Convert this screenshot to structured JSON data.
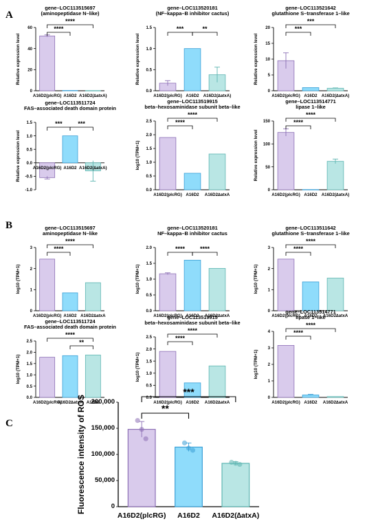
{
  "panel_labels": [
    "A",
    "B",
    "C"
  ],
  "colors": {
    "purple_fill": "#d9cbec",
    "purple_edge": "#8c6fb5",
    "blue_fill": "#8fdcfb",
    "blue_edge": "#3a9fd6",
    "teal_fill": "#b9e6e4",
    "teal_edge": "#5db5b1"
  },
  "chart_data": [
    {
      "panel": "A",
      "type": "bar",
      "title": [
        "gene–LOC113515697",
        "(aminopeptidase N–like)"
      ],
      "ylabel": "Relative expression level",
      "ylim": [
        0,
        60
      ],
      "yticks": [
        0,
        20,
        40,
        60
      ],
      "tick_labels": [
        "0",
        "20",
        "40",
        "60"
      ],
      "categories": [
        "A16D2(plcRG)",
        "A16D2",
        "A16D2(∆atxA)"
      ],
      "values": [
        52,
        0.3,
        0.2
      ],
      "err": [
        1,
        0,
        0
      ],
      "colors": [
        "purple",
        "blue",
        "teal"
      ],
      "sig": [
        {
          "from": 0,
          "to": 1,
          "label": "****",
          "level": 0
        },
        {
          "from": 0,
          "to": 2,
          "label": "****",
          "level": 1
        }
      ]
    },
    {
      "panel": "A",
      "type": "bar",
      "title": [
        "gene–LOC113520181",
        "(NF–kappa–B inhibitor cactus)"
      ],
      "ylabel": "Relative expression level",
      "ylim": [
        0,
        1.5
      ],
      "yticks": [
        0,
        0.5,
        1.0,
        1.5
      ],
      "tick_labels": [
        "0.0",
        "0.5",
        "1.0",
        "1.5"
      ],
      "categories": [
        "A16D2(plcRG)",
        "A16D2",
        "A16D2(∆atxA)"
      ],
      "values": [
        0.18,
        1.0,
        0.38
      ],
      "err": [
        0.06,
        0,
        0.18
      ],
      "colors": [
        "purple",
        "blue",
        "teal"
      ],
      "sig": [
        {
          "from": 0,
          "to": 1,
          "label": "***",
          "level": 0
        },
        {
          "from": 1,
          "to": 2,
          "label": "**",
          "level": 0
        }
      ]
    },
    {
      "panel": "A",
      "type": "bar",
      "title": [
        "gene–LOC113521642",
        "glutathione S–transferase 1–like"
      ],
      "ylabel": "Relative expression level",
      "ylim": [
        0,
        20
      ],
      "yticks": [
        0,
        5,
        10,
        15,
        20
      ],
      "tick_labels": [
        "0",
        "5",
        "10",
        "15",
        "20"
      ],
      "categories": [
        "A16D2(plcRG)",
        "A16D2",
        "A16D2(∆atxA)"
      ],
      "values": [
        9.5,
        1.0,
        0.8
      ],
      "err": [
        2.5,
        0,
        0.1
      ],
      "colors": [
        "purple",
        "blue",
        "teal"
      ],
      "sig": [
        {
          "from": 0,
          "to": 1,
          "label": "***",
          "level": 0
        },
        {
          "from": 0,
          "to": 2,
          "label": "***",
          "level": 1
        }
      ]
    },
    {
      "panel": "A",
      "type": "bar",
      "title": [
        "gene–LOC113511724",
        "FAS–associated death domain protein"
      ],
      "ylabel": "Relative expression level",
      "ylim": [
        -1.0,
        1.5
      ],
      "yticks": [
        -1.0,
        -0.5,
        0,
        0.5,
        1.0,
        1.5
      ],
      "tick_labels": [
        "-1.0",
        "-0.5",
        "0.0",
        "0.5",
        "1.0",
        "1.5"
      ],
      "categories": [
        "A16D2(plcRG)",
        "A16D2",
        "A16D2(∆atxA)"
      ],
      "values": [
        -0.55,
        1.0,
        -0.3
      ],
      "err": [
        0.05,
        0,
        0.38
      ],
      "colors": [
        "purple",
        "blue",
        "teal"
      ],
      "sig": [
        {
          "from": 0,
          "to": 1,
          "label": "***",
          "level": 0
        },
        {
          "from": 1,
          "to": 2,
          "label": "***",
          "level": 0
        }
      ]
    },
    {
      "panel": "A",
      "type": "bar",
      "title": [
        "gene–LOC113519915",
        "beta–hexosaminidase subunit beta–like"
      ],
      "ylabel": "log10 (TPM+1)",
      "ylim": [
        0,
        2.5
      ],
      "yticks": [
        0,
        0.5,
        1.0,
        1.5,
        2.0,
        2.5
      ],
      "tick_labels": [
        "0.0",
        "0.5",
        "1.0",
        "1.5",
        "2.0",
        "2.5"
      ],
      "categories": [
        "A16D2(plcRG)",
        "A16D2",
        "A16D2∆atxA"
      ],
      "values": [
        1.9,
        0.6,
        1.3
      ],
      "err": [
        0,
        0,
        0
      ],
      "colors": [
        "purple",
        "blue",
        "teal"
      ],
      "sig": [
        {
          "from": 0,
          "to": 1,
          "label": "****",
          "level": 0
        },
        {
          "from": 0,
          "to": 2,
          "label": "****",
          "level": 1
        }
      ]
    },
    {
      "panel": "A",
      "type": "bar",
      "title": [
        "gene–LOC113514771",
        "lipase 1–like"
      ],
      "ylabel": "Relative expression level",
      "ylim": [
        0,
        150
      ],
      "yticks": [
        0,
        50,
        100,
        150
      ],
      "tick_labels": [
        "0",
        "50",
        "100",
        "150"
      ],
      "categories": [
        "A16D2(plcRG)",
        "A16D2",
        "A16D2(∆atxA)"
      ],
      "values": [
        125,
        0.5,
        62
      ],
      "err": [
        8,
        0,
        5
      ],
      "colors": [
        "purple",
        "blue",
        "teal"
      ],
      "sig": [
        {
          "from": 0,
          "to": 1,
          "label": "****",
          "level": 0
        },
        {
          "from": 0,
          "to": 2,
          "label": "****",
          "level": 1
        }
      ]
    },
    {
      "panel": "B",
      "type": "bar",
      "title": [
        "gene–LOC113515697",
        "aminopeptidase N–like"
      ],
      "ylabel": "log10 (TPM+1)",
      "ylim": [
        0,
        3
      ],
      "yticks": [
        0,
        1,
        2,
        3
      ],
      "tick_labels": [
        "0",
        "1",
        "2",
        "3"
      ],
      "categories": [
        "A16D2(plcRG)",
        "A16D2",
        "A16D2∆atxA"
      ],
      "values": [
        2.45,
        0.85,
        1.33
      ],
      "err": [
        0,
        0,
        0
      ],
      "colors": [
        "purple",
        "blue",
        "teal"
      ],
      "sig": [
        {
          "from": 0,
          "to": 1,
          "label": "****",
          "level": 0
        },
        {
          "from": 0,
          "to": 2,
          "label": "****",
          "level": 1
        }
      ]
    },
    {
      "panel": "B",
      "type": "bar",
      "title": [
        "gene–LOC113520181",
        "NF–kappa–B inhibitor cactus"
      ],
      "ylabel": "log10 (TPM+1)",
      "ylim": [
        0,
        2.0
      ],
      "yticks": [
        0,
        0.5,
        1.0,
        1.5,
        2.0
      ],
      "tick_labels": [
        "0.0",
        "0.5",
        "1.0",
        "1.5",
        "2.0"
      ],
      "categories": [
        "A16D2(plcRG)",
        "A16D2",
        "A16D2∆atxA"
      ],
      "values": [
        1.17,
        1.6,
        1.34
      ],
      "err": [
        0.03,
        0,
        0
      ],
      "colors": [
        "purple",
        "blue",
        "teal"
      ],
      "sig": [
        {
          "from": 0,
          "to": 1,
          "label": "****",
          "level": 0
        },
        {
          "from": 1,
          "to": 2,
          "label": "****",
          "level": 0
        }
      ]
    },
    {
      "panel": "B",
      "type": "bar",
      "title": [
        "gene–LOC113511642",
        "glutathione S–transferase 1–like"
      ],
      "ylabel": "log10 (TPM+1)",
      "ylim": [
        0,
        3
      ],
      "yticks": [
        0,
        1,
        2,
        3
      ],
      "tick_labels": [
        "0",
        "1",
        "2",
        "3"
      ],
      "categories": [
        "A16D2(plcRG)",
        "A16D2",
        "A16D2∆atxA"
      ],
      "values": [
        2.45,
        1.37,
        1.55
      ],
      "err": [
        0,
        0,
        0
      ],
      "colors": [
        "purple",
        "blue",
        "teal"
      ],
      "sig": [
        {
          "from": 0,
          "to": 1,
          "label": "****",
          "level": 0
        },
        {
          "from": 0,
          "to": 2,
          "label": "****",
          "level": 1
        }
      ]
    },
    {
      "panel": "B",
      "type": "bar",
      "title": [
        "gene–LOC113511724",
        "FAS–associated death domain protein"
      ],
      "ylabel": "log10 (TPM+1)",
      "ylim": [
        0,
        2.5
      ],
      "yticks": [
        0,
        0.5,
        1.0,
        1.5,
        2.0,
        2.5
      ],
      "tick_labels": [
        "0.0",
        "0.5",
        "1.0",
        "1.5",
        "2.0",
        "2.5"
      ],
      "categories": [
        "A16D2(plcRG)",
        "A16D2∆atxA",
        "A16D2"
      ],
      "values": [
        1.78,
        1.85,
        1.88
      ],
      "err": [
        0,
        0,
        0
      ],
      "colors": [
        "purple",
        "blue",
        "teal"
      ],
      "sig": [
        {
          "from": 1,
          "to": 2,
          "label": "**",
          "level": 0
        },
        {
          "from": 0,
          "to": 2,
          "label": "****",
          "level": 1
        }
      ]
    },
    {
      "panel": "B",
      "type": "bar",
      "title": [
        "gene–LOC113519915",
        "beta–hexosaminidase subunit beta–like"
      ],
      "ylabel": "log10 (TPM+1)",
      "ylim": [
        0,
        2.5
      ],
      "yticks": [
        0,
        0.5,
        1.0,
        1.5,
        2.0,
        2.5
      ],
      "tick_labels": [
        "0.0",
        "0.5",
        "1.0",
        "1.5",
        "2.0",
        "2.5"
      ],
      "categories": [
        "A16D2(plcRG)",
        "A16D2",
        "A16D2∆atxA"
      ],
      "values": [
        1.9,
        0.6,
        1.3
      ],
      "err": [
        0,
        0,
        0
      ],
      "colors": [
        "purple",
        "blue",
        "teal"
      ],
      "sig": [
        {
          "from": 0,
          "to": 1,
          "label": "****",
          "level": 0
        },
        {
          "from": 0,
          "to": 2,
          "label": "****",
          "level": 1
        }
      ]
    },
    {
      "panel": "B",
      "type": "bar",
      "title": [
        "gene–LOC113514771",
        "lipase 1–like"
      ],
      "ylabel": "log10 (TPM+1)",
      "ylim": [
        0,
        4
      ],
      "yticks": [
        0,
        1,
        2,
        3,
        4
      ],
      "tick_labels": [
        "0",
        "1",
        "2",
        "3",
        "4"
      ],
      "categories": [
        "A16D2(plcRG)",
        "A16D2",
        "A16D2∆atxA"
      ],
      "values": [
        3.15,
        0.15,
        0.05
      ],
      "err": [
        0,
        0.03,
        0
      ],
      "colors": [
        "purple",
        "blue",
        "teal"
      ],
      "sig": [
        {
          "from": 0,
          "to": 1,
          "label": "****",
          "level": 0
        },
        {
          "from": 0,
          "to": 2,
          "label": "****",
          "level": 1
        }
      ]
    },
    {
      "panel": "C",
      "type": "bar",
      "title": [],
      "ylabel": "Fluorescence intensity of ROS",
      "ylim": [
        0,
        200000
      ],
      "yticks": [
        0,
        50000,
        100000,
        150000,
        200000
      ],
      "tick_labels": [
        "0",
        "50,000",
        "100,000",
        "150,000",
        "200,000"
      ],
      "categories": [
        "A16D2(plcRG)",
        "A16D2",
        "A16D2(∆atxA)"
      ],
      "values": [
        148000,
        114000,
        83000
      ],
      "err": [
        15000,
        8000,
        3000
      ],
      "colors": [
        "purple",
        "blue",
        "teal"
      ],
      "points": [
        [
          165000,
          148000,
          130000
        ],
        [
          122000,
          112000,
          108000
        ],
        [
          85000,
          83000,
          81000
        ]
      ],
      "sig": [
        {
          "from": 0,
          "to": 1,
          "label": "**",
          "level": 0
        },
        {
          "from": 0,
          "to": 2,
          "label": "***",
          "level": 1
        }
      ]
    }
  ]
}
